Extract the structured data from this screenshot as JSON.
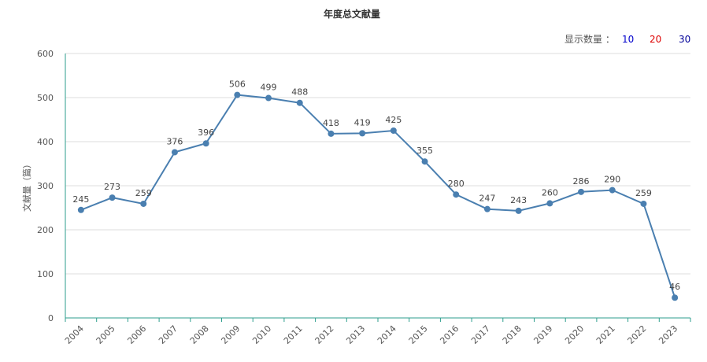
{
  "chart_data": {
    "type": "line",
    "title": "年度总文献量",
    "ylabel": "文献量（篇）",
    "xlabel": "",
    "ylim": [
      0,
      600
    ],
    "yticks": [
      0,
      100,
      200,
      300,
      400,
      500,
      600
    ],
    "grid": true,
    "categories": [
      "2004",
      "2005",
      "2006",
      "2007",
      "2008",
      "2009",
      "2010",
      "2011",
      "2012",
      "2013",
      "2014",
      "2015",
      "2016",
      "2017",
      "2018",
      "2019",
      "2020",
      "2021",
      "2022",
      "2023"
    ],
    "values": [
      245,
      273,
      259,
      376,
      396,
      506,
      499,
      488,
      418,
      419,
      425,
      355,
      280,
      247,
      243,
      260,
      286,
      290,
      259,
      46
    ]
  },
  "controls": {
    "label": "显示数量 ：",
    "options": [
      {
        "value": "10",
        "color": "#0000cc"
      },
      {
        "value": "20",
        "color": "#dd0000"
      },
      {
        "value": "30",
        "color": "#000099"
      }
    ]
  },
  "colors": {
    "line": "#4a7fb0",
    "axis": "#2e9e8e",
    "grid": "#dddddd"
  }
}
